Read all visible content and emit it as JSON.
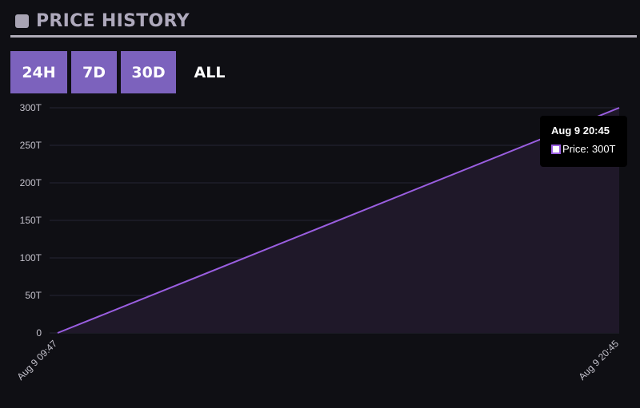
{
  "header": {
    "title": "PRICE HISTORY"
  },
  "range_buttons": [
    {
      "label": "24H",
      "active": false
    },
    {
      "label": "7D",
      "active": false
    },
    {
      "label": "30D",
      "active": false
    },
    {
      "label": "ALL",
      "active": true
    }
  ],
  "tooltip": {
    "time": "Aug 9 20:45",
    "series_label": "Price:",
    "value": "300T"
  },
  "colors": {
    "accent": "#7c62bd",
    "line": "#9a5ee0",
    "fill": "#1f1829",
    "background": "#0f0f14"
  },
  "chart_data": {
    "type": "area",
    "x": [
      "Aug 9 09:47",
      "Aug 9 20:45"
    ],
    "series": [
      {
        "values": [
          0,
          300
        ]
      }
    ],
    "y_unit": "T",
    "yticks": [
      0,
      50,
      100,
      150,
      200,
      250,
      300
    ],
    "ytick_labels": [
      "0",
      "50T",
      "100T",
      "150T",
      "200T",
      "250T",
      "300T"
    ],
    "xtick_labels": [
      "Aug 9 09:47",
      "Aug 9 20:45"
    ],
    "ylim": [
      0,
      300
    ],
    "grid": true,
    "title": "",
    "xlabel": "",
    "ylabel": ""
  }
}
